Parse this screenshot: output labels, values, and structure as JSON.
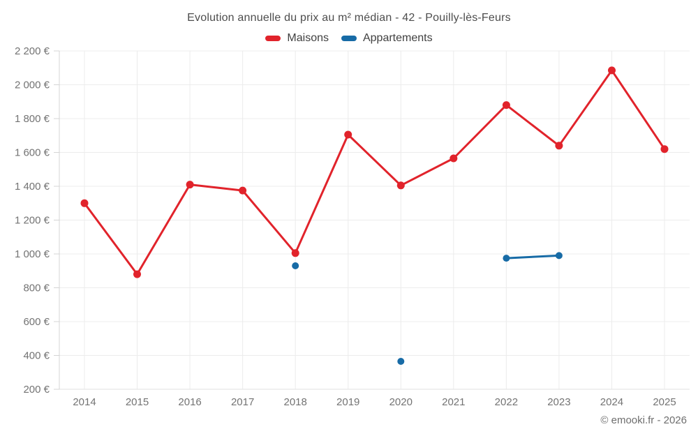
{
  "footer": "© emooki.fr - 2026",
  "chart_data": {
    "type": "line",
    "title": "Evolution annuelle du prix au m² médian - 42 - Pouilly-lès-Feurs",
    "categories": [
      "2014",
      "2015",
      "2016",
      "2017",
      "2018",
      "2019",
      "2020",
      "2021",
      "2022",
      "2023",
      "2024",
      "2025"
    ],
    "series": [
      {
        "name": "Maisons",
        "color": "#e1232b",
        "values": [
          1300,
          880,
          1410,
          1375,
          1005,
          1705,
          1405,
          1565,
          1880,
          1640,
          2085,
          1620
        ]
      },
      {
        "name": "Appartements",
        "color": "#176ba6",
        "values": [
          null,
          null,
          null,
          null,
          930,
          null,
          365,
          null,
          975,
          990,
          null,
          null
        ]
      }
    ],
    "xlabel": "",
    "ylabel": "",
    "ylim": [
      200,
      2200
    ],
    "ytick_step": 200,
    "ytick_suffix": " €",
    "grid": true,
    "legend_position": "top"
  }
}
